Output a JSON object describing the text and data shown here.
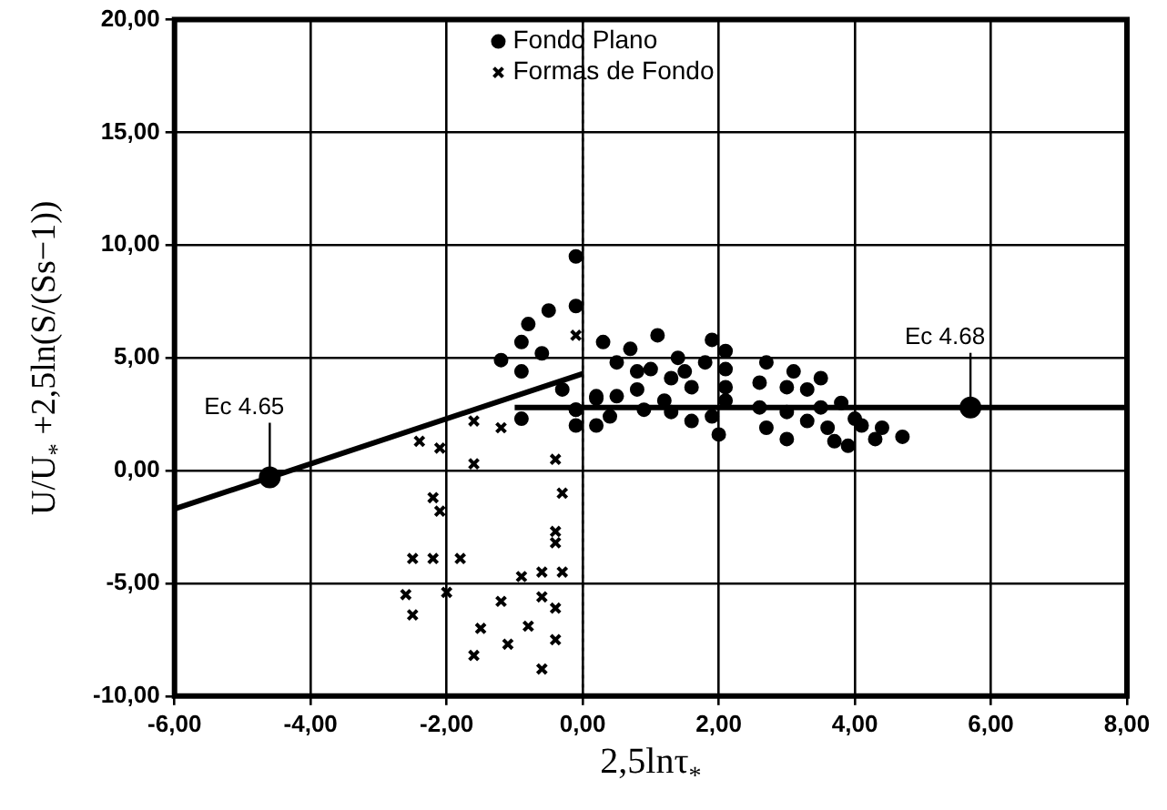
{
  "chart_data": {
    "type": "scatter",
    "xlabel": "2,5lnτ$_{*}$",
    "ylabel": "U/U$_{*}$ +2,5ln(S/(Ss−1))",
    "xlim": [
      -6,
      8
    ],
    "ylim": [
      -10,
      20
    ],
    "xticks": [
      {
        "value": -6,
        "label": "-6,00"
      },
      {
        "value": -4,
        "label": "-4,00"
      },
      {
        "value": -2,
        "label": "-2,00"
      },
      {
        "value": 0,
        "label": "0,00"
      },
      {
        "value": 2,
        "label": "2,00"
      },
      {
        "value": 4,
        "label": "4,00"
      },
      {
        "value": 6,
        "label": "6,00"
      },
      {
        "value": 8,
        "label": "8,00"
      }
    ],
    "yticks": [
      {
        "value": -10,
        "label": "-10,00"
      },
      {
        "value": -5,
        "label": "-5,00"
      },
      {
        "value": 0,
        "label": "0,00"
      },
      {
        "value": 5,
        "label": "5,00"
      },
      {
        "value": 10,
        "label": "10,00"
      },
      {
        "value": 15,
        "label": "15,00"
      },
      {
        "value": 20,
        "label": "20,00"
      }
    ],
    "grid": true,
    "legend": "top",
    "series": [
      {
        "name": "Fondo Plano",
        "type": "scatter",
        "marker": "circle",
        "color": "#000000",
        "x": [
          -0.1,
          -0.1,
          -0.5,
          -0.8,
          -0.9,
          -0.6,
          -1.2,
          -0.9,
          0.3,
          -0.9,
          -0.3,
          -0.1,
          0.2,
          1.1,
          0.7,
          0.5,
          0.8,
          1,
          1.4,
          1.9,
          2.1,
          1.8,
          2.1,
          1.5,
          2.7,
          3.1,
          3.5,
          3.3,
          3,
          2.6,
          2.1,
          1.6,
          1.3,
          0.8,
          0.5,
          0.2,
          -0.1,
          -0.1,
          0.2,
          0.4,
          0.9,
          1.2,
          1.3,
          1.6,
          1.9,
          2,
          2.1,
          2.6,
          2.7,
          3,
          3,
          3.3,
          3.5,
          3.6,
          3.8,
          4,
          3.7,
          3.9,
          4.1,
          4.3,
          4.4,
          4.7
        ],
        "values": [
          9.5,
          7.3,
          7.1,
          6.5,
          5.7,
          5.2,
          4.9,
          4.4,
          5.7,
          2.3,
          3.6,
          2.7,
          3.2,
          6,
          5.4,
          4.8,
          4.4,
          4.5,
          5,
          5.8,
          5.3,
          4.8,
          4.5,
          4.4,
          4.8,
          4.4,
          4.1,
          3.6,
          3.7,
          3.9,
          3.7,
          3.7,
          4.1,
          3.6,
          3.3,
          3.3,
          2.7,
          2,
          2,
          2.4,
          2.7,
          3.1,
          2.6,
          2.2,
          2.4,
          1.6,
          3.1,
          2.8,
          1.9,
          2.6,
          1.4,
          2.2,
          2.8,
          1.9,
          3,
          2.3,
          1.3,
          1.1,
          2,
          1.4,
          1.9,
          1.5
        ]
      },
      {
        "name": "Formas de Fondo",
        "type": "scatter",
        "marker": "cross",
        "color": "#000000",
        "x": [
          -2.4,
          -2.1,
          -1.6,
          -1.2,
          -1.6,
          -0.4,
          -0.3,
          -2.2,
          -2.1,
          -2.5,
          -2.2,
          -1.8,
          -2.6,
          -2.5,
          -2,
          -0.4,
          -0.4,
          -0.9,
          -0.6,
          -0.3,
          -1.2,
          -0.6,
          -0.4,
          -1.5,
          -0.8,
          -0.4,
          -1.1,
          -1.6,
          -0.6,
          -0.1
        ],
        "values": [
          1.3,
          1,
          2.2,
          1.9,
          0.3,
          0.5,
          -1,
          -1.2,
          -1.8,
          -3.9,
          -3.9,
          -3.9,
          -5.5,
          -6.4,
          -5.4,
          -2.7,
          -3.2,
          -4.7,
          -4.5,
          -4.5,
          -5.8,
          -5.6,
          -6.1,
          -7,
          -6.9,
          -7.5,
          -7.7,
          -8.2,
          -8.8,
          6
        ]
      },
      {
        "type": "line",
        "marker": "none",
        "color": "#000000",
        "x": [
          -6,
          0
        ],
        "values": [
          -1.7,
          4.3
        ]
      },
      {
        "type": "line",
        "marker": "none",
        "color": "#000000",
        "x": [
          -1,
          8
        ],
        "values": [
          2.8,
          2.8
        ]
      },
      {
        "type": "scatter",
        "marker": "circle",
        "color": "#000000",
        "x": [
          -4.6,
          5.7
        ],
        "values": [
          -0.3,
          2.8
        ]
      }
    ],
    "ref_lines": [
      {
        "axis": "x",
        "value": 0,
        "line_style": "dotted",
        "color": "#000000"
      }
    ],
    "annotations": [
      {
        "text": "Ec 4.65",
        "x": -4.6,
        "y": -0.3
      },
      {
        "text": "Ec 4.68",
        "x": 5.7,
        "y": 2.8
      }
    ]
  }
}
